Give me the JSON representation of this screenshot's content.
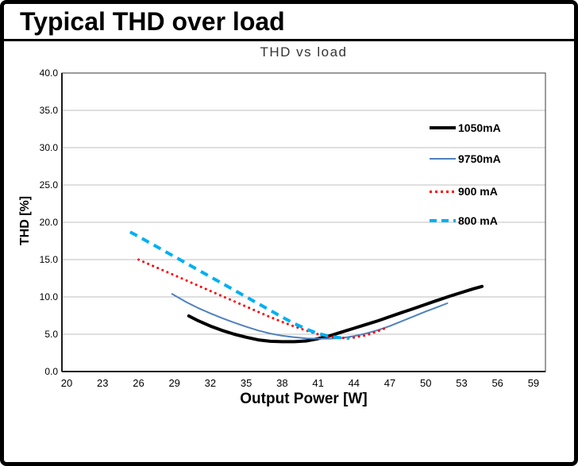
{
  "page": {
    "title": "Typical THD over load"
  },
  "chart_data": {
    "type": "line",
    "title": "THD  vs load",
    "xlabel": "Output Power [W]",
    "ylabel": "THD [%]",
    "xlim": [
      19.6,
      60.0
    ],
    "ylim": [
      0,
      40
    ],
    "x_ticks": [
      20,
      23,
      26,
      29,
      32,
      35,
      38,
      41,
      44,
      47,
      50,
      53,
      56,
      59
    ],
    "y_ticks": [
      "0.0",
      "5.0",
      "10.0",
      "15.0",
      "20.0",
      "25.0",
      "30.0",
      "35.0",
      "40.0"
    ],
    "grid": "horizontal-only",
    "gridline_color": "#bfbfbf",
    "frame_color": "#595959",
    "axis_color": "#1a1a1a",
    "legend_position": "inside-right",
    "series": [
      {
        "name": "1050mA",
        "color": "#000000",
        "style": "solid",
        "width": 4,
        "points": [
          [
            30.2,
            7.45
          ],
          [
            31,
            6.8
          ],
          [
            32,
            6.1
          ],
          [
            33,
            5.5
          ],
          [
            34,
            5.0
          ],
          [
            35,
            4.6
          ],
          [
            36,
            4.25
          ],
          [
            37,
            4.05
          ],
          [
            38,
            4.0
          ],
          [
            39,
            4.0
          ],
          [
            40,
            4.1
          ],
          [
            41,
            4.4
          ],
          [
            42,
            4.8
          ],
          [
            43,
            5.3
          ],
          [
            44,
            5.8
          ],
          [
            45,
            6.3
          ],
          [
            46,
            6.8
          ],
          [
            47,
            7.35
          ],
          [
            48,
            7.9
          ],
          [
            49,
            8.45
          ],
          [
            50,
            9.0
          ],
          [
            51,
            9.55
          ],
          [
            52,
            10.1
          ],
          [
            53,
            10.6
          ],
          [
            54,
            11.1
          ],
          [
            54.7,
            11.4
          ]
        ]
      },
      {
        "name": "9750mA",
        "color": "#4f81bd",
        "style": "solid",
        "width": 2,
        "points": [
          [
            28.8,
            10.4
          ],
          [
            30,
            9.3
          ],
          [
            31,
            8.5
          ],
          [
            32,
            7.8
          ],
          [
            33,
            7.15
          ],
          [
            34,
            6.55
          ],
          [
            35,
            6.0
          ],
          [
            36,
            5.5
          ],
          [
            37,
            5.1
          ],
          [
            38,
            4.8
          ],
          [
            39,
            4.6
          ],
          [
            40,
            4.45
          ],
          [
            41,
            4.4
          ],
          [
            42,
            4.4
          ],
          [
            43,
            4.5
          ],
          [
            44,
            4.75
          ],
          [
            45,
            5.1
          ],
          [
            46,
            5.55
          ],
          [
            47,
            6.1
          ],
          [
            48,
            6.75
          ],
          [
            49,
            7.4
          ],
          [
            50,
            8.05
          ],
          [
            51,
            8.65
          ],
          [
            51.8,
            9.15
          ]
        ]
      },
      {
        "name": "900 mA",
        "color": "#ff0000",
        "style": "dotted",
        "width": 3,
        "points": [
          [
            26,
            15.0
          ],
          [
            27,
            14.3
          ],
          [
            28,
            13.6
          ],
          [
            29,
            12.9
          ],
          [
            30,
            12.2
          ],
          [
            31,
            11.5
          ],
          [
            32,
            10.8
          ],
          [
            33,
            10.1
          ],
          [
            34,
            9.4
          ],
          [
            35,
            8.7
          ],
          [
            36,
            8.0
          ],
          [
            37,
            7.3
          ],
          [
            38,
            6.65
          ],
          [
            39,
            6.05
          ],
          [
            40,
            5.5
          ],
          [
            41,
            5.0
          ],
          [
            42,
            4.65
          ],
          [
            43,
            4.5
          ],
          [
            44,
            4.55
          ],
          [
            45,
            4.85
          ],
          [
            46,
            5.4
          ],
          [
            46.9,
            6.0
          ]
        ]
      },
      {
        "name": "800 mA",
        "color": "#00b0f0",
        "style": "dashed",
        "width": 4,
        "points": [
          [
            25.3,
            18.7
          ],
          [
            26,
            18.1
          ],
          [
            27,
            17.2
          ],
          [
            28,
            16.3
          ],
          [
            29,
            15.4
          ],
          [
            30,
            14.5
          ],
          [
            31,
            13.6
          ],
          [
            32,
            12.7
          ],
          [
            33,
            11.8
          ],
          [
            34,
            10.9
          ],
          [
            35,
            10.0
          ],
          [
            36,
            9.1
          ],
          [
            37,
            8.2
          ],
          [
            38,
            7.3
          ],
          [
            39,
            6.45
          ],
          [
            40,
            5.7
          ],
          [
            41,
            5.1
          ],
          [
            42,
            4.7
          ],
          [
            43,
            4.5
          ],
          [
            43.6,
            4.45
          ]
        ]
      }
    ]
  }
}
